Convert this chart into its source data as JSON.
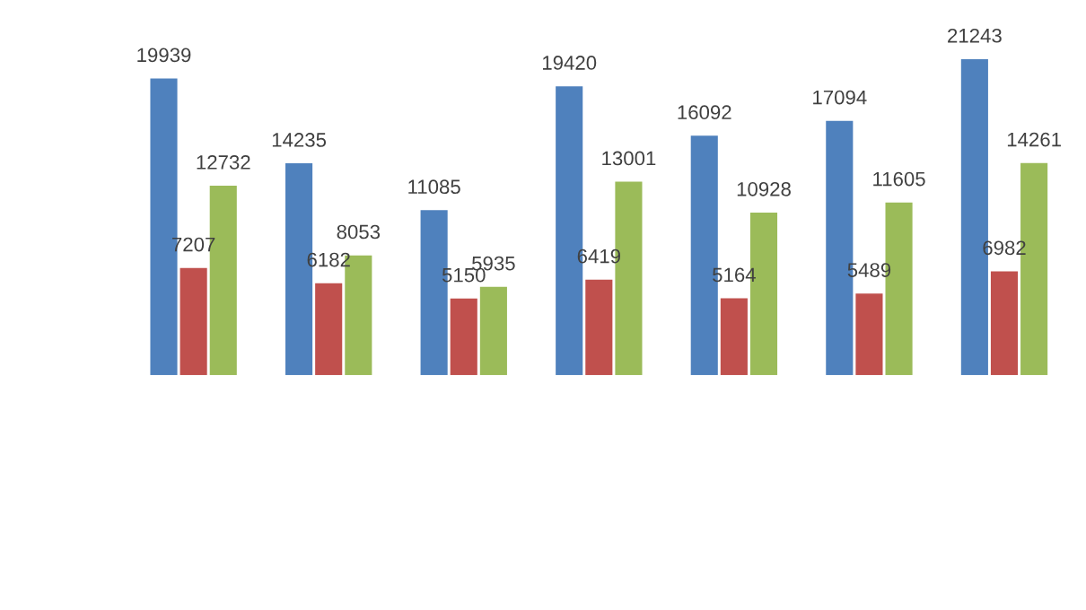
{
  "chart_data": {
    "type": "bar",
    "categories": [
      null,
      null,
      null,
      null,
      null,
      null,
      null
    ],
    "series": [
      {
        "color": "#4f81bd",
        "values": [
          19939,
          14235,
          11085,
          19420,
          16092,
          17094,
          21243
        ]
      },
      {
        "color": "#c0504d",
        "values": [
          7207,
          6182,
          5150,
          6419,
          5164,
          5489,
          6982
        ]
      },
      {
        "color": "#9bbb59",
        "values": [
          12732,
          8053,
          5935,
          13001,
          10928,
          11605,
          14261
        ]
      }
    ],
    "data_labels": true,
    "grid": false,
    "legend": false
  }
}
